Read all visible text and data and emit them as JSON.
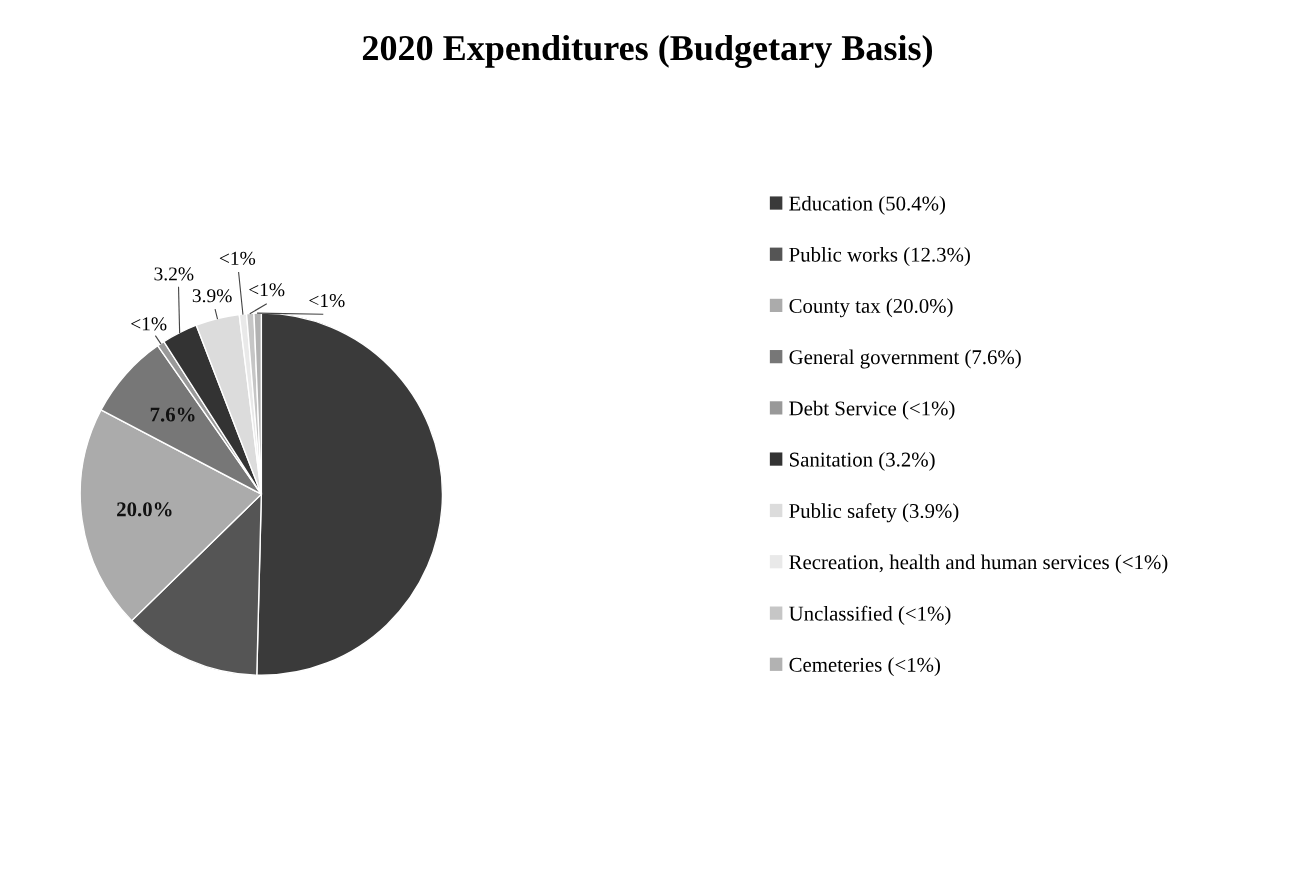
{
  "chart_data": {
    "type": "pie",
    "title": "2020 Expenditures (Budgetary Basis)",
    "categories": [
      "Education (50.4%)",
      "Public works (12.3%)",
      "County tax (20.0%)",
      "General government (7.6%)",
      "Debt Service (<1%)",
      "Sanitation (3.2%)",
      "Public safety (3.9%)",
      "Recreation, health and human services (<1%)",
      "Unclassified (<1%)",
      "Cemeteries (<1%)"
    ],
    "values": [
      50.4,
      12.3,
      20.0,
      7.6,
      0.65,
      3.2,
      3.9,
      0.65,
      0.65,
      0.65
    ],
    "colors": [
      "#3a3a3a",
      "#555555",
      "#ababab",
      "#777777",
      "#999999",
      "#333333",
      "#dcdcdc",
      "#e9e9e9",
      "#c6c6c6",
      "#b2b2b2"
    ],
    "value_labels": [
      null,
      null,
      "20.0%",
      "7.6%",
      "<1%",
      "3.2%",
      "3.9%",
      "<1%",
      "<1%",
      "<1%"
    ],
    "legend": "right"
  }
}
